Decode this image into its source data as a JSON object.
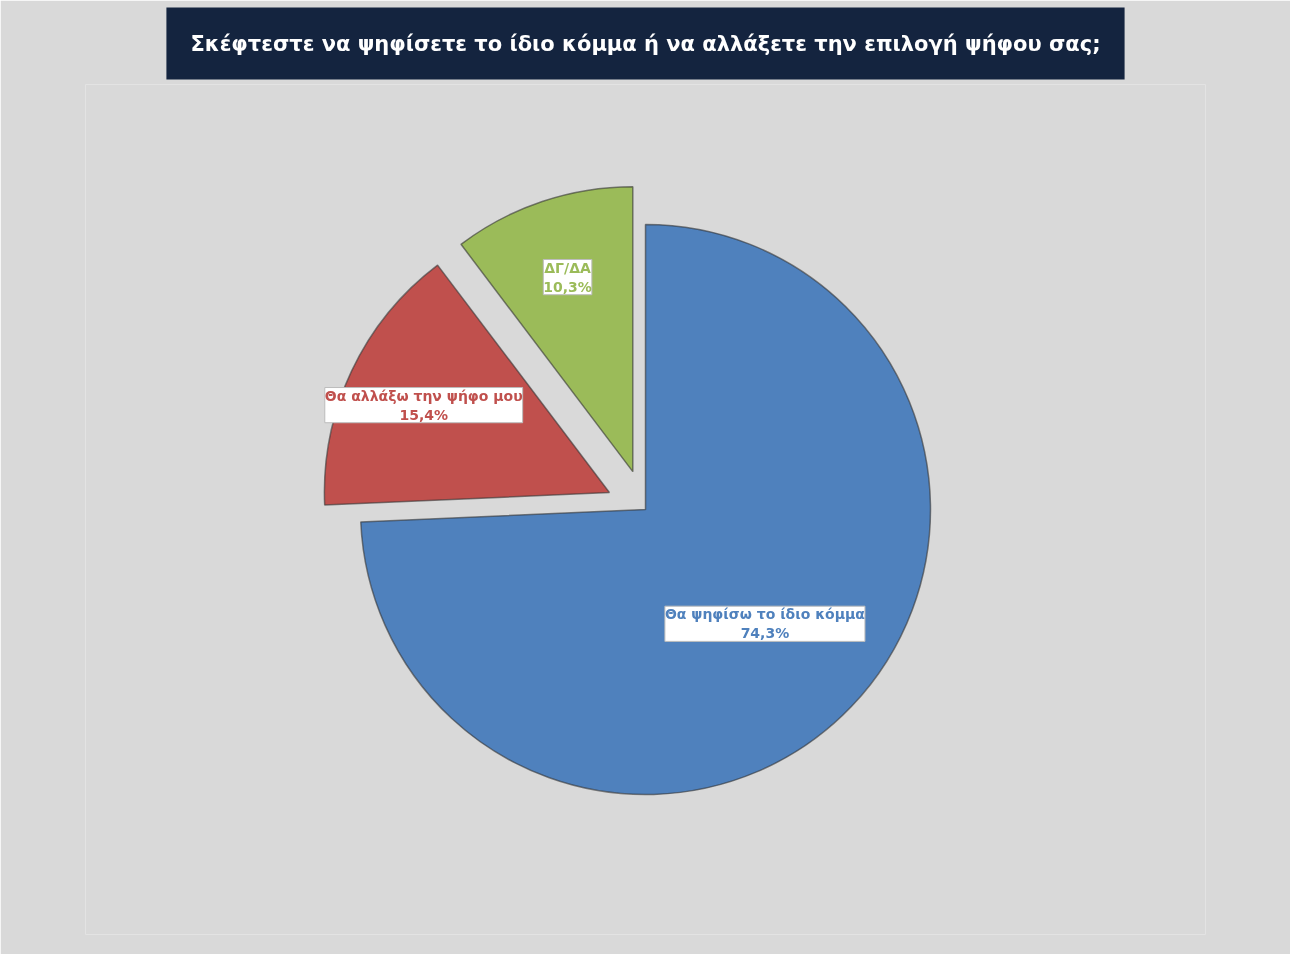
{
  "chart_data": {
    "type": "pie",
    "title": "Σκέφτεστε να ψηφίσετε το ίδιο κόμμα ή να αλλάξετε την επιλογή ψήφου σας;",
    "categories": [
      "Θα ψηφίσω το ίδιο κόμμα",
      "Θα αλλάξω την ψήφο μου",
      "ΔΓ/ΔΑ"
    ],
    "values": [
      74.3,
      15.4,
      10.3
    ],
    "colors": [
      "#4f81bd",
      "#c0504d",
      "#9bbb59"
    ],
    "value_labels": [
      "74,3%",
      "15,4%",
      "10,3%"
    ]
  }
}
